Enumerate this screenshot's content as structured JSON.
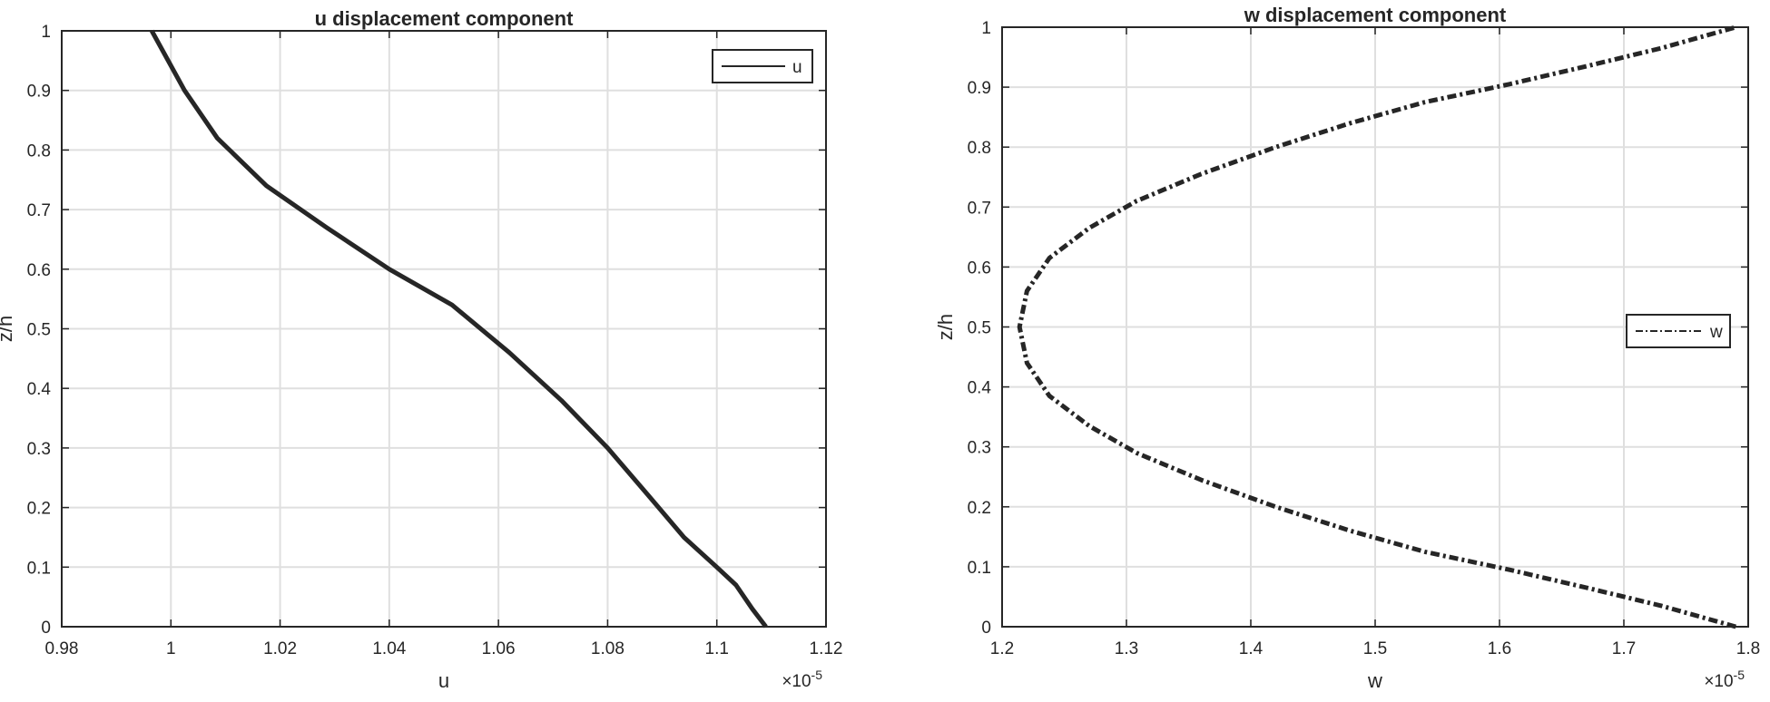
{
  "chart_data": [
    {
      "type": "line",
      "title": "u displacement component",
      "xlabel": "u",
      "ylabel": "z/h",
      "xlim": [
        0.98,
        1.12
      ],
      "ylim": [
        0,
        1
      ],
      "xticks": [
        "0.98",
        "1",
        "1.02",
        "1.04",
        "1.06",
        "1.08",
        "1.1",
        "1.12"
      ],
      "yticks": [
        "0",
        "0.1",
        "0.2",
        "0.3",
        "0.4",
        "0.5",
        "0.6",
        "0.7",
        "0.8",
        "0.9",
        "1"
      ],
      "x_multiplier": {
        "base": "×10",
        "exponent": "-5"
      },
      "grid": true,
      "legend": {
        "position": "top-right",
        "entries": [
          "u"
        ]
      },
      "series": [
        {
          "name": "u",
          "line_style": "solid",
          "color": "#262626",
          "x": [
            1.109,
            1.1065,
            1.1035,
            1.1,
            1.094,
            1.0875,
            1.08,
            1.0715,
            1.062,
            1.0515,
            1.04,
            1.0285,
            1.0175,
            1.0085,
            1.0025,
            0.9965
          ],
          "y": [
            0,
            0.03,
            0.07,
            0.1,
            0.15,
            0.22,
            0.3,
            0.38,
            0.46,
            0.54,
            0.6,
            0.67,
            0.74,
            0.82,
            0.9,
            1.0
          ]
        }
      ]
    },
    {
      "type": "line",
      "title": "w displacement component",
      "xlabel": "w",
      "ylabel": "z/h",
      "xlim": [
        1.2,
        1.8
      ],
      "ylim": [
        0,
        1
      ],
      "xticks": [
        "1.2",
        "1.3",
        "1.4",
        "1.5",
        "1.6",
        "1.7",
        "1.8"
      ],
      "yticks": [
        "0",
        "0.1",
        "0.2",
        "0.3",
        "0.4",
        "0.5",
        "0.6",
        "0.7",
        "0.8",
        "0.9",
        "1"
      ],
      "x_multiplier": {
        "base": "×10",
        "exponent": "-5"
      },
      "grid": true,
      "legend": {
        "position": "right",
        "entries": [
          "w"
        ]
      },
      "series": [
        {
          "name": "w",
          "line_style": "dash-dot",
          "color": "#262626",
          "x": [
            1.79,
            1.73,
            1.67,
            1.608,
            1.54,
            1.48,
            1.42,
            1.36,
            1.308,
            1.27,
            1.238,
            1.22,
            1.214,
            1.22,
            1.238,
            1.27,
            1.308,
            1.36,
            1.42,
            1.48,
            1.54,
            1.608,
            1.67,
            1.73,
            1.79
          ],
          "y": [
            0.0,
            0.035,
            0.065,
            0.095,
            0.125,
            0.16,
            0.2,
            0.245,
            0.29,
            0.335,
            0.385,
            0.44,
            0.5,
            0.56,
            0.615,
            0.665,
            0.71,
            0.755,
            0.8,
            0.84,
            0.875,
            0.905,
            0.935,
            0.965,
            1.0
          ]
        }
      ]
    }
  ]
}
